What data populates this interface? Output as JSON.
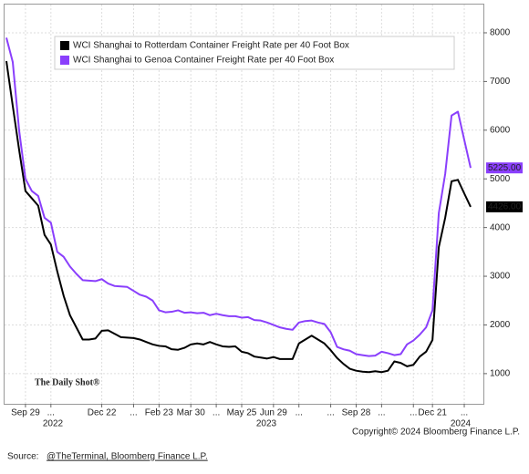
{
  "chart_data": {
    "type": "line",
    "categories": [
      null,
      null,
      null,
      "Sep 29",
      null,
      null,
      null,
      "...",
      null,
      null,
      null,
      null,
      null,
      null,
      null,
      "Dec 22",
      null,
      null,
      null,
      null,
      "...",
      null,
      null,
      null,
      "Feb 23",
      null,
      null,
      null,
      null,
      "Mar 30",
      null,
      null,
      null,
      "...",
      null,
      null,
      null,
      "May 25",
      null,
      null,
      null,
      null,
      "Jun 29",
      null,
      null,
      null,
      "...",
      null,
      null,
      null,
      null,
      "...",
      null,
      null,
      null,
      "Sep 28",
      null,
      null,
      null,
      "...",
      null,
      null,
      null,
      null,
      "...",
      null,
      null,
      "Dec 21",
      null,
      null,
      null,
      null,
      "...",
      null
    ],
    "years": [
      "2022",
      "2023",
      "2024"
    ],
    "series": [
      {
        "name": "WCI Shanghai to Rotterdam Container Freight Rate per 40 Foot Box",
        "color": "#000000",
        "values": [
          7420,
          6500,
          5600,
          4750,
          4600,
          4450,
          3850,
          3650,
          3100,
          2600,
          2200,
          1950,
          1700,
          1700,
          1720,
          1880,
          1890,
          1820,
          1750,
          1740,
          1730,
          1700,
          1650,
          1600,
          1570,
          1560,
          1500,
          1490,
          1530,
          1600,
          1620,
          1600,
          1650,
          1600,
          1560,
          1550,
          1560,
          1450,
          1420,
          1350,
          1330,
          1310,
          1340,
          1300,
          1300,
          1300,
          1620,
          1700,
          1780,
          1700,
          1620,
          1480,
          1320,
          1200,
          1100,
          1060,
          1040,
          1030,
          1050,
          1030,
          1060,
          1250,
          1220,
          1150,
          1180,
          1350,
          1450,
          1690,
          3600,
          4200,
          4950,
          4980,
          4700,
          4426
        ],
        "value_labels": [
          null,
          null,
          null,
          null,
          null,
          null,
          null,
          null,
          null,
          null,
          null,
          null,
          null,
          null,
          null,
          null,
          null,
          null,
          null,
          null,
          null,
          null,
          null,
          null,
          null,
          null,
          null,
          null,
          null,
          null,
          null,
          null,
          null,
          null,
          null,
          null,
          null,
          null,
          null,
          null,
          null,
          null,
          null,
          null,
          null,
          null,
          null,
          null,
          null,
          null,
          null,
          null,
          null,
          null,
          null,
          null,
          null,
          null,
          null,
          null,
          null,
          null,
          null,
          null,
          null,
          null,
          null,
          null,
          null,
          null,
          null,
          null,
          null,
          "4426.00"
        ]
      },
      {
        "name": "WCI Shanghai to Genoa Container Freight Rate per 40 Foot Box",
        "color": "#8a3ffc",
        "values": [
          7900,
          7400,
          6000,
          5000,
          4750,
          4650,
          4200,
          4100,
          3500,
          3400,
          3200,
          3050,
          2920,
          2910,
          2900,
          2940,
          2850,
          2800,
          2790,
          2780,
          2700,
          2620,
          2580,
          2500,
          2300,
          2260,
          2270,
          2300,
          2250,
          2260,
          2240,
          2250,
          2200,
          2230,
          2200,
          2180,
          2180,
          2150,
          2160,
          2100,
          2090,
          2050,
          2000,
          1950,
          1920,
          1900,
          2050,
          2080,
          2090,
          2050,
          2020,
          1850,
          1550,
          1500,
          1470,
          1400,
          1380,
          1360,
          1370,
          1450,
          1420,
          1380,
          1400,
          1600,
          1680,
          1800,
          1950,
          2300,
          4300,
          5100,
          6300,
          6380,
          5800,
          5225
        ],
        "value_labels": [
          null,
          null,
          null,
          null,
          null,
          null,
          null,
          null,
          null,
          null,
          null,
          null,
          null,
          null,
          null,
          null,
          null,
          null,
          null,
          null,
          null,
          null,
          null,
          null,
          null,
          null,
          null,
          null,
          null,
          null,
          null,
          null,
          null,
          null,
          null,
          null,
          null,
          null,
          null,
          null,
          null,
          null,
          null,
          null,
          null,
          null,
          null,
          null,
          null,
          null,
          null,
          null,
          null,
          null,
          null,
          null,
          null,
          null,
          null,
          null,
          null,
          null,
          null,
          null,
          null,
          null,
          null,
          null,
          null,
          null,
          null,
          null,
          null,
          "5225.00"
        ]
      }
    ],
    "ylim": [
      380,
      8580
    ],
    "yticks": [
      1000,
      2000,
      3000,
      4000,
      5000,
      6000,
      7000,
      8000
    ],
    "grid": true,
    "legend": "upper left",
    "watermark": "The Daily Shot®",
    "copyright": "Copyright© 2024 Bloomberg Finance L.P.",
    "source_prefix": "Source:",
    "source_link": "@TheTerminal, Bloomberg Finance L.P."
  }
}
